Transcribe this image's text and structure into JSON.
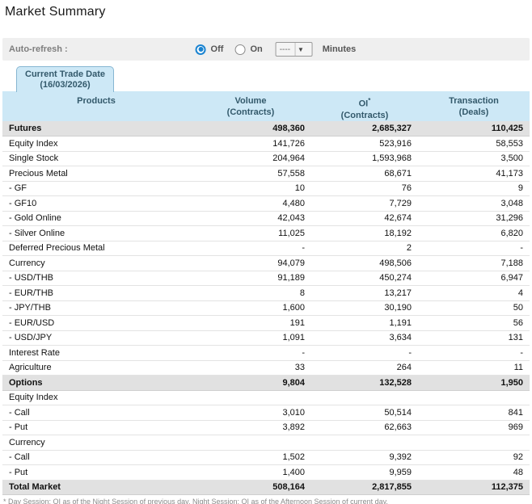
{
  "page": {
    "title": "Market Summary"
  },
  "auto_refresh": {
    "label": "Auto-refresh :",
    "off_label": "Off",
    "on_label": "On",
    "selected": "Off",
    "minutes_value": "----",
    "minutes_label": "Minutes"
  },
  "tab": {
    "line1": "Current Trade Date",
    "line2": "(16/03/2026)"
  },
  "table": {
    "columns": [
      {
        "title": "Products",
        "sup": "",
        "sub": ""
      },
      {
        "title": "Volume",
        "sup": "",
        "sub": "(Contracts)"
      },
      {
        "title": "OI",
        "sup": "*",
        "sub": "(Contracts)"
      },
      {
        "title": "Transaction",
        "sup": "",
        "sub": "(Deals)"
      }
    ],
    "rows": [
      {
        "product": "Futures",
        "volume": "498,360",
        "oi": "2,685,327",
        "deals": "110,425",
        "style": "section"
      },
      {
        "product": "Equity Index",
        "volume": "141,726",
        "oi": "523,916",
        "deals": "58,553",
        "style": "normal"
      },
      {
        "product": "Single Stock",
        "volume": "204,964",
        "oi": "1,593,968",
        "deals": "3,500",
        "style": "normal"
      },
      {
        "product": "Precious Metal",
        "volume": "57,558",
        "oi": "68,671",
        "deals": "41,173",
        "style": "normal"
      },
      {
        "product": "- GF",
        "volume": "10",
        "oi": "76",
        "deals": "9",
        "style": "normal"
      },
      {
        "product": "- GF10",
        "volume": "4,480",
        "oi": "7,729",
        "deals": "3,048",
        "style": "normal"
      },
      {
        "product": "- Gold Online",
        "volume": "42,043",
        "oi": "42,674",
        "deals": "31,296",
        "style": "normal"
      },
      {
        "product": "- Silver Online",
        "volume": "11,025",
        "oi": "18,192",
        "deals": "6,820",
        "style": "normal"
      },
      {
        "product": "Deferred Precious Metal",
        "volume": "-",
        "oi": "2",
        "deals": "-",
        "style": "normal"
      },
      {
        "product": "Currency",
        "volume": "94,079",
        "oi": "498,506",
        "deals": "7,188",
        "style": "normal"
      },
      {
        "product": "- USD/THB",
        "volume": "91,189",
        "oi": "450,274",
        "deals": "6,947",
        "style": "normal"
      },
      {
        "product": "- EUR/THB",
        "volume": "8",
        "oi": "13,217",
        "deals": "4",
        "style": "normal"
      },
      {
        "product": "- JPY/THB",
        "volume": "1,600",
        "oi": "30,190",
        "deals": "50",
        "style": "normal"
      },
      {
        "product": "- EUR/USD",
        "volume": "191",
        "oi": "1,191",
        "deals": "56",
        "style": "normal"
      },
      {
        "product": "- USD/JPY",
        "volume": "1,091",
        "oi": "3,634",
        "deals": "131",
        "style": "normal"
      },
      {
        "product": "Interest Rate",
        "volume": "-",
        "oi": "-",
        "deals": "-",
        "style": "normal"
      },
      {
        "product": "Agriculture",
        "volume": "33",
        "oi": "264",
        "deals": "11",
        "style": "normal"
      },
      {
        "product": "Options",
        "volume": "9,804",
        "oi": "132,528",
        "deals": "1,950",
        "style": "section"
      },
      {
        "product": "Equity Index",
        "volume": "",
        "oi": "",
        "deals": "",
        "style": "normal"
      },
      {
        "product": "- Call",
        "volume": "3,010",
        "oi": "50,514",
        "deals": "841",
        "style": "normal"
      },
      {
        "product": "- Put",
        "volume": "3,892",
        "oi": "62,663",
        "deals": "969",
        "style": "normal"
      },
      {
        "product": "Currency",
        "volume": "",
        "oi": "",
        "deals": "",
        "style": "normal"
      },
      {
        "product": "- Call",
        "volume": "1,502",
        "oi": "9,392",
        "deals": "92",
        "style": "normal"
      },
      {
        "product": "- Put",
        "volume": "1,400",
        "oi": "9,959",
        "deals": "48",
        "style": "normal"
      },
      {
        "product": "Total Market",
        "volume": "508,164",
        "oi": "2,817,855",
        "deals": "112,375",
        "style": "section"
      }
    ],
    "footnote": "* Day Session: OI as of the Night Session of previous day. Night Session: OI as of the Afternoon Session of current day."
  },
  "colors": {
    "header_bg": "#cde8f6",
    "header_text": "#33596b",
    "section_row_bg": "#e1e1e1",
    "bar_bg": "#efefef",
    "radio_selected": "#1b84d1"
  }
}
